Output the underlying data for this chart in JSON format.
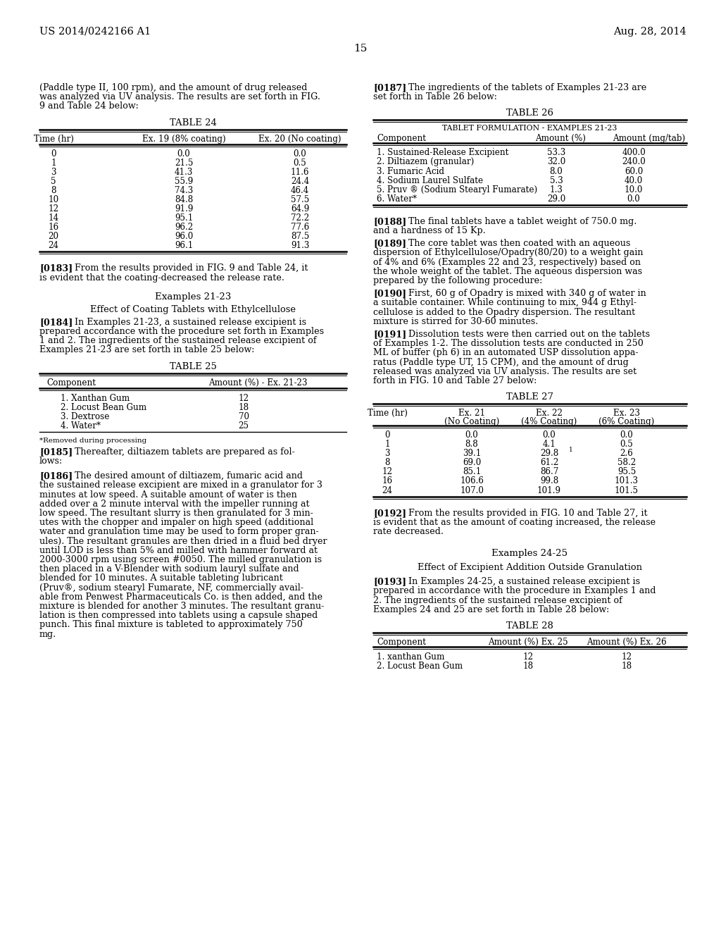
{
  "header_left": "US 2014/0242166 A1",
  "header_right": "Aug. 28, 2014",
  "page_number": "15",
  "background_color": "#ffffff",
  "col1": {
    "intro_text": "(Paddle type II, 100 rpm), and the amount of drug released\nwas analyzed via UV analysis. The results are set forth in FIG.\n9 and Table 24 below:",
    "table24_title": "TABLE 24",
    "table24_col_headers": [
      "Time (hr)",
      "Ex. 19 (8% coating)",
      "Ex. 20 (No coating)"
    ],
    "table24_data": [
      [
        "0",
        "0.0",
        "0.0"
      ],
      [
        "1",
        "21.5",
        "0.5"
      ],
      [
        "3",
        "41.3",
        "11.6"
      ],
      [
        "5",
        "55.9",
        "24.4"
      ],
      [
        "8",
        "74.3",
        "46.4"
      ],
      [
        "10",
        "84.8",
        "57.5"
      ],
      [
        "12",
        "91.9",
        "64.9"
      ],
      [
        "14",
        "95.1",
        "72.2"
      ],
      [
        "16",
        "96.2",
        "77.6"
      ],
      [
        "20",
        "96.0",
        "87.5"
      ],
      [
        "24",
        "96.1",
        "91.3"
      ]
    ],
    "para183_bracket": "[0183]",
    "para183_text": "   From the results provided in FIG. 9 and Table 24, it\nis evident that the coating-decreased the release rate.",
    "section_title": "Examples 21-23",
    "section_subtitle": "Effect of Coating Tablets with Ethylcellulose",
    "para184_bracket": "[0184]",
    "para184_text": "   In Examples 21-23, a sustained release excipient is\nprepared accordance with the procedure set forth in Examples\n1 and 2. The ingredients of the sustained release excipient of\nExamples 21-23 are set forth in table 25 below:",
    "table25_title": "TABLE 25",
    "table25_col_headers": [
      "Component",
      "Amount (%) - Ex. 21-23"
    ],
    "table25_data": [
      [
        "1. Xanthan Gum",
        "12"
      ],
      [
        "2. Locust Bean Gum",
        "18"
      ],
      [
        "3. Dextrose",
        "70"
      ],
      [
        "4. Water*",
        "25"
      ]
    ],
    "table25_footnote": "*Removed during processing",
    "para185_bracket": "[0185]",
    "para185_text": "   Thereafter, diltiazem tablets are prepared as fol-\nlows:",
    "para186_bracket": "[0186]",
    "para186_text": "   The desired amount of diltiazem, fumaric acid and\nthe sustained release excipient are mixed in a granulator for 3\nminutes at low speed. A suitable amount of water is then\nadded over a 2 minute interval with the impeller running at\nlow speed. The resultant slurry is then granulated for 3 min-\nutes with the chopper and impaler on high speed (additional\nwater and granulation time may be used to form proper gran-\nules). The resultant granules are then dried in a fluid bed dryer\nuntil LOD is less than 5% and milled with hammer forward at\n2000-3000 rpm using screen #0050. The milled granulation is\nthen placed in a V-Blender with sodium lauryl sulfate and\nblended for 10 minutes. A suitable tableting lubricant\n(Pruv®, sodium stearyl Fumarate, NF, commercially avail-\nable from Penwest Pharmaceuticals Co. is then added, and the\nmixture is blended for another 3 minutes. The resultant granu-\nlation is then compressed into tablets using a capsule shaped\npunch. This final mixture is tableted to approximately 750\nmg."
  },
  "col2": {
    "para187_bracket": "[0187]",
    "para187_text": "   The ingredients of the tablets of Examples 21-23 are\nset forth in Table 26 below:",
    "table26_title": "TABLE 26",
    "table26_subtitle": "TABLET FORMULATION - EXAMPLES 21-23",
    "table26_col_headers": [
      "Component",
      "Amount (%)",
      "Amount (mg/tab)"
    ],
    "table26_data": [
      [
        "1. Sustained-Release Excipient",
        "53.3",
        "400.0"
      ],
      [
        "2. Diltiazem (granular)",
        "32.0",
        "240.0"
      ],
      [
        "3. Fumaric Acid",
        "8.0",
        "60.0"
      ],
      [
        "4. Sodium Laurel Sulfate",
        "5.3",
        "40.0"
      ],
      [
        "5. Pruv ® (Sodium Stearyl Fumarate)",
        "1.3",
        "10.0"
      ],
      [
        "6. Water*",
        "29.0",
        "0.0"
      ]
    ],
    "para188_bracket": "[0188]",
    "para188_text": "   The final tablets have a tablet weight of 750.0 mg.\nand a hardness of 15 Kp.",
    "para189_bracket": "[0189]",
    "para189_text": "   The core tablet was then coated with an aqueous\ndispersion of Ethylcellulose/Opadry(80/20) to a weight gain\nof 4% and 6% (Examples 22 and 23, respectively) based on\nthe whole weight of the tablet. The aqueous dispersion was\nprepared by the following procedure:",
    "para190_bracket": "[0190]",
    "para190_text": "   First, 60 g of Opadry is mixed with 340 g of water in\na suitable container. While continuing to mix, 944 g Ethyl-\ncellulose is added to the Opadry dispersion. The resultant\nmixture is stirred for 30-60 minutes.",
    "para191_bracket": "[0191]",
    "para191_text": "   Dissolution tests were then carried out on the tablets\nof Examples 1-2. The dissolution tests are conducted in 250\nML of buffer (ph 6) in an automated USP dissolution appa-\nratus (Paddle type UT, 15 CPM), and the amount of drug\nreleased was analyzed via UV analysis. The results are set\nforth in FIG. 10 and Table 27 below:",
    "table27_title": "TABLE 27",
    "table27_col_headers": [
      "Time (hr)",
      "Ex. 21\n(No Coating)",
      "Ex. 22\n(4% Coating)",
      "Ex. 23\n(6% Coating)"
    ],
    "table27_data": [
      [
        "0",
        "0.0",
        "0.0",
        "0.0"
      ],
      [
        "1",
        "8.8",
        "4.1",
        "0.5"
      ],
      [
        "3",
        "39.1",
        "29.8",
        "2.6"
      ],
      [
        "8",
        "69.0",
        "61.2",
        "58.2"
      ],
      [
        "12",
        "85.1",
        "86.7",
        "95.5"
      ],
      [
        "16",
        "106.6",
        "99.8",
        "101.3"
      ],
      [
        "24",
        "107.0",
        "101.9",
        "101.5"
      ]
    ],
    "table27_superscript_row": 2,
    "para192_bracket": "[0192]",
    "para192_text": "   From the results provided in FIG. 10 and Table 27, it\nis evident that as the amount of coating increased, the release\nrate decreased.",
    "section_title2": "Examples 24-25",
    "section_subtitle2": "Effect of Excipient Addition Outside Granulation",
    "para193_bracket": "[0193]",
    "para193_text": "   In Examples 24-25, a sustained release excipient is\nprepared in accordance with the procedure in Examples 1 and\n2. The ingredients of the sustained release excipient of\nExamples 24 and 25 are set forth in Table 28 below:",
    "table28_title": "TABLE 28",
    "table28_col_headers": [
      "Component",
      "Amount (%) Ex. 25",
      "Amount (%) Ex. 26"
    ],
    "table28_data": [
      [
        "1. xanthan Gum",
        "12",
        "12"
      ],
      [
        "2. Locust Bean Gum",
        "18",
        "18"
      ]
    ]
  }
}
